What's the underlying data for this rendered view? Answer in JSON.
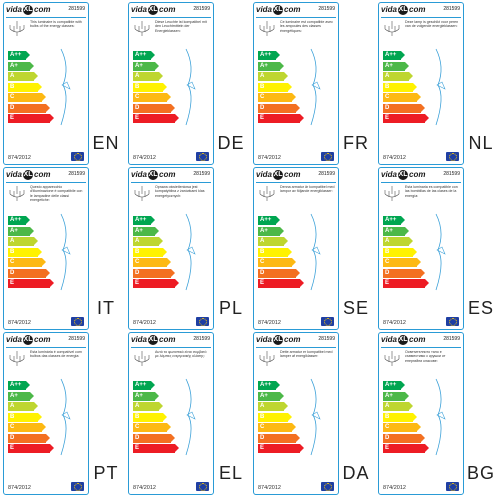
{
  "brand": {
    "name": "vida",
    "mark": "XL",
    "suffix": "com"
  },
  "product_code": "281599",
  "regulation": "874/2012",
  "energy_scale": [
    {
      "grade": "A++",
      "color": "#00a651"
    },
    {
      "grade": "A+",
      "color": "#4cb848"
    },
    {
      "grade": "A",
      "color": "#bed630"
    },
    {
      "grade": "B",
      "color": "#fff200"
    },
    {
      "grade": "C",
      "color": "#fdb913"
    },
    {
      "grade": "D",
      "color": "#f37021"
    },
    {
      "grade": "E",
      "color": "#ed1c24"
    }
  ],
  "labels": [
    {
      "lang": "EN",
      "text": "This luminaire is compatible with bulbs of the energy classes:"
    },
    {
      "lang": "DE",
      "text": "Diese Leuchte ist kompatibel mit den Leuchtmitteln der Energieklassen:"
    },
    {
      "lang": "FR",
      "text": "Ce luminaire est compatible avec les ampoules des classes énergétiques:"
    },
    {
      "lang": "NL",
      "text": "Deze lamp is geschikt voor peren van de volgende energieklassen:"
    },
    {
      "lang": "IT",
      "text": "Questo apparecchio d'illuminazione è compatibile con le lampadine delle classi energetiche:"
    },
    {
      "lang": "PL",
      "text": "Oprawa oświetleniowa jest kompatybilna z żarówkami klas energetycznych:"
    },
    {
      "lang": "SE",
      "text": "Denna armatur är kompatibel med lampor av följande energiklasser:"
    },
    {
      "lang": "ES",
      "text": "Esta luminaria es compatible con las bombillas de las clases de la energía:"
    },
    {
      "lang": "PT",
      "text": "Esta luminária é compatível com bulbos das classes de energia:"
    },
    {
      "lang": "EL",
      "text": "Αυτό το φωτιστικό είναι συμβατό με λάμπες ενεργειακής κλάσης:"
    },
    {
      "lang": "DA",
      "text": "Dette armatur er kompatibel med lamper af energiklasser:"
    },
    {
      "lang": "BG",
      "text": "Осветителното тяло е съвместимо с крушки от енергийни класове:"
    }
  ]
}
